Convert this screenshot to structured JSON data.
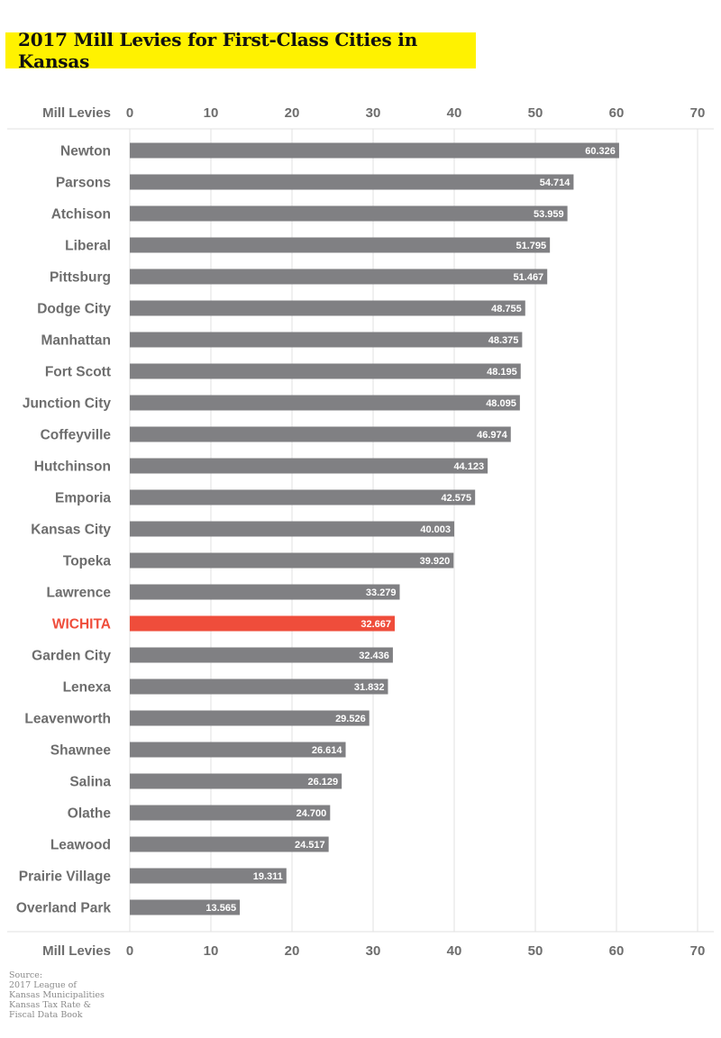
{
  "title": "2017 Mill Levies for First-Class Cities in Kansas",
  "source_lines": [
    "Source:",
    "2017 League of",
    "Kansas Municipalities",
    "Kansas Tax Rate &",
    "Fiscal Data Book"
  ],
  "colors": {
    "bar": "#808083",
    "highlight": "#ef4d3b",
    "title_bg": "#fff200",
    "grid": "#e2e2e2",
    "label": "#6d6d6d"
  },
  "chart_data": {
    "type": "bar",
    "orientation": "horizontal",
    "title": "2017 Mill Levies for First-Class Cities in Kansas",
    "axis_label": "Mill Levies",
    "axis_position": "top and bottom",
    "xlim": [
      0,
      70
    ],
    "ticks": [
      0,
      10,
      20,
      30,
      40,
      50,
      60,
      70
    ],
    "grid": true,
    "highlight": "WICHITA",
    "categories": [
      "Newton",
      "Parsons",
      "Atchison",
      "Liberal",
      "Pittsburg",
      "Dodge City",
      "Manhattan",
      "Fort Scott",
      "Junction City",
      "Coffeyville",
      "Hutchinson",
      "Emporia",
      "Kansas City",
      "Topeka",
      "Lawrence",
      "WICHITA",
      "Garden City",
      "Lenexa",
      "Leavenworth",
      "Shawnee",
      "Salina",
      "Olathe",
      "Leawood",
      "Prairie Village",
      "Overland Park"
    ],
    "values": [
      60.326,
      54.714,
      53.959,
      51.795,
      51.467,
      48.755,
      48.375,
      48.195,
      48.095,
      46.974,
      44.123,
      42.575,
      40.003,
      39.92,
      33.279,
      32.667,
      32.436,
      31.832,
      29.526,
      26.614,
      26.129,
      24.7,
      24.517,
      19.311,
      13.565
    ],
    "value_labels": [
      "60.326",
      "54.714",
      "53.959",
      "51.795",
      "51.467",
      "48.755",
      "48.375",
      "48.195",
      "48.095",
      "46.974",
      "44.123",
      "42.575",
      "40.003",
      "39.920",
      "33.279",
      "32.667",
      "32.436",
      "31.832",
      "29.526",
      "26.614",
      "26.129",
      "24.700",
      "24.517",
      "19.311",
      "13.565"
    ]
  }
}
